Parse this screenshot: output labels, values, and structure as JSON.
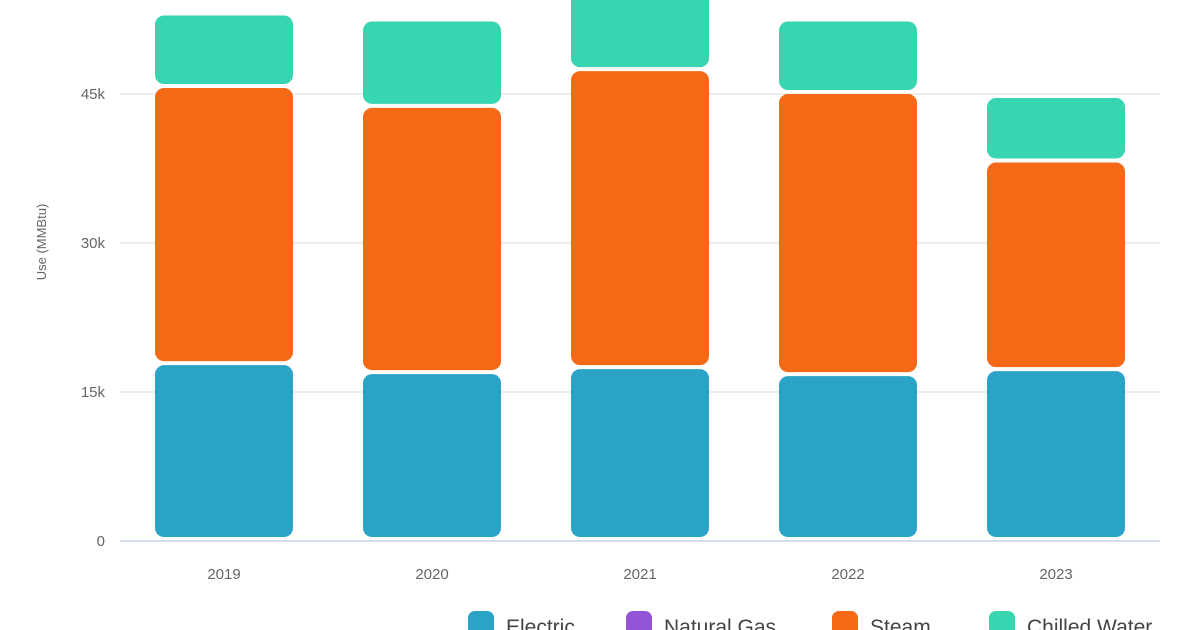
{
  "chart_data": {
    "type": "bar",
    "stacked": true,
    "categories": [
      "2019",
      "2020",
      "2021",
      "2022",
      "2023"
    ],
    "series": [
      {
        "name": "Electric",
        "color": "#2ba3c6",
        "values": [
          17700,
          16800,
          17300,
          16600,
          17100
        ]
      },
      {
        "name": "Natural Gas",
        "color": "#9354d8",
        "values": [
          0,
          0,
          0,
          0,
          0
        ]
      },
      {
        "name": "Steam",
        "color": "#f66a17",
        "values": [
          27900,
          26800,
          30000,
          28400,
          21000
        ]
      },
      {
        "name": "Chilled Water",
        "color": "#38d5b1",
        "values": [
          7300,
          8700,
          8000,
          7300,
          6500
        ]
      }
    ],
    "ylabel": "Use (MMBtu)",
    "xlabel": "",
    "yticks": [
      "0",
      "15k",
      "30k",
      "45k"
    ],
    "ytick_values": [
      0,
      15000,
      30000,
      45000
    ],
    "ylim": [
      0,
      55000
    ],
    "grid": true,
    "legend_position": "bottom"
  }
}
